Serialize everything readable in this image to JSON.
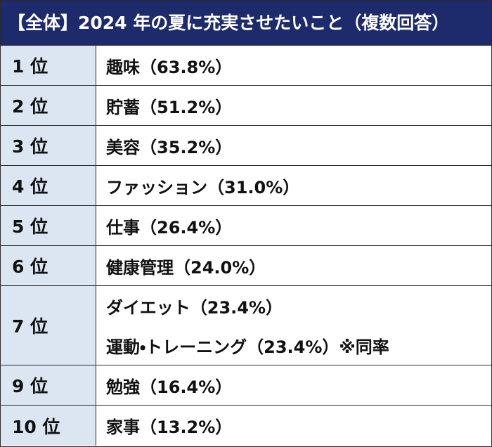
{
  "header": {
    "title": "【全体】2024 年の夏に充実させたいこと（複数回答）"
  },
  "table": {
    "rows": [
      {
        "rank": "1 位",
        "items": [
          "趣味（63.8%）"
        ]
      },
      {
        "rank": "2 位",
        "items": [
          "貯蓄（51.2%）"
        ]
      },
      {
        "rank": "3 位",
        "items": [
          "美容（35.2%）"
        ]
      },
      {
        "rank": "4 位",
        "items": [
          "ファッション（31.0%）"
        ]
      },
      {
        "rank": "5 位",
        "items": [
          "仕事（26.4%）"
        ]
      },
      {
        "rank": "6 位",
        "items": [
          "健康管理（24.0%）"
        ]
      },
      {
        "rank": "7 位",
        "items": [
          "ダイエット（23.4%）",
          "運動・トレーニング（23.4%）※同率"
        ]
      },
      {
        "rank": "9 位",
        "items": [
          "勉強（16.4%）"
        ]
      },
      {
        "rank": "10 位",
        "items": [
          "家事（13.2%）"
        ]
      }
    ]
  }
}
